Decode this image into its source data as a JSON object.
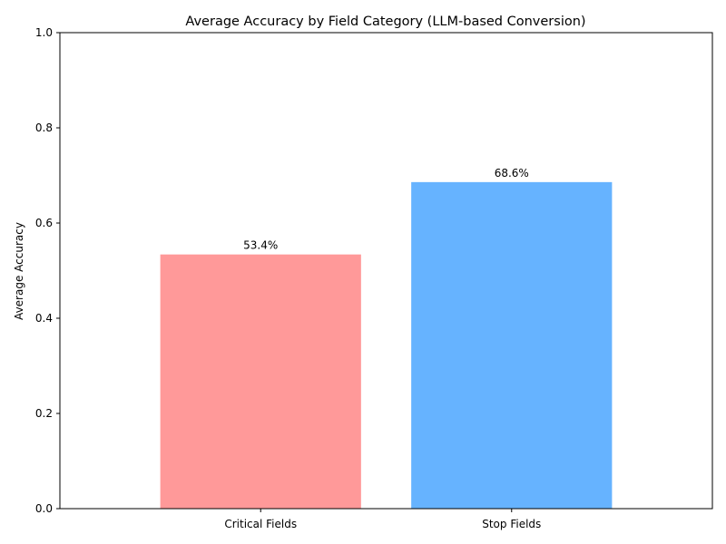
{
  "chart_data": {
    "type": "bar",
    "title": "Average Accuracy by Field Category (LLM-based Conversion)",
    "xlabel": "",
    "ylabel": "Average Accuracy",
    "categories": [
      "Critical Fields",
      "Stop Fields"
    ],
    "values": [
      0.534,
      0.686
    ],
    "data_labels": [
      "53.4%",
      "68.6%"
    ],
    "colors": [
      "#ff9999",
      "#66b3ff"
    ],
    "ylim": [
      0,
      1.0
    ],
    "yticks": [
      0.0,
      0.2,
      0.4,
      0.6,
      0.8,
      1.0
    ],
    "ytick_labels": [
      "0.0",
      "0.2",
      "0.4",
      "0.6",
      "0.8",
      "1.0"
    ],
    "grid": false,
    "legend": "none"
  }
}
